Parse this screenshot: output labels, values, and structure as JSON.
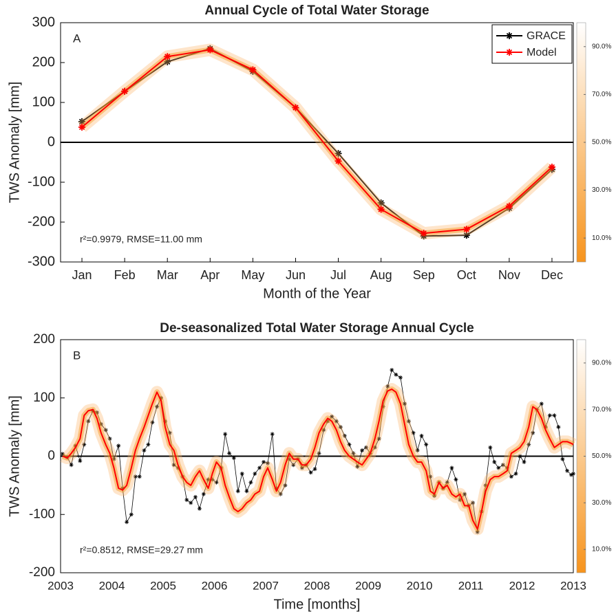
{
  "chart_data": [
    {
      "type": "line",
      "title": "Annual Cycle of Total Water Storage",
      "panel_label": "A",
      "annotation": "r²=0.9979, RMSE=11.00 mm",
      "x_label": "Month of the Year",
      "y_label": "TWS Anomaly [mm]",
      "categories": [
        "Jan",
        "Feb",
        "Mar",
        "Apr",
        "May",
        "Jun",
        "Jul",
        "Aug",
        "Sep",
        "Oct",
        "Nov",
        "Dec"
      ],
      "series": [
        {
          "name": "GRACE",
          "color": "#000000",
          "marker": "*",
          "values": [
            52,
            128,
            202,
            235,
            178,
            87,
            -28,
            -152,
            -235,
            -233,
            -165,
            -68
          ]
        },
        {
          "name": "Model",
          "color": "#ff0000",
          "marker": "*",
          "band": true,
          "values": [
            38,
            128,
            215,
            232,
            182,
            87,
            -47,
            -168,
            -228,
            -218,
            -160,
            -62
          ]
        }
      ],
      "ylim": [
        -300,
        300
      ],
      "yticks": [
        -300,
        -200,
        -100,
        0,
        100,
        200,
        300
      ],
      "legend": "upper right",
      "colorbar": {
        "colors": [
          "#f7941d",
          "#ffffff"
        ],
        "lim": [
          0,
          100
        ],
        "ticks": [
          {
            "value": 10,
            "label": "10.0%"
          },
          {
            "value": 30,
            "label": "30.0%"
          },
          {
            "value": 50,
            "label": "50.0%"
          },
          {
            "value": 70,
            "label": "70.0%"
          },
          {
            "value": 90,
            "label": "90.0%"
          }
        ]
      }
    },
    {
      "type": "line",
      "title": "De-seasonalized Total Water Storage Annual Cycle",
      "panel_label": "B",
      "annotation": "r²=0.8512, RMSE=29.27 mm",
      "x_label": "Time [months]",
      "y_label": "TWS Anomaly [mm]",
      "x": [
        2003.04,
        2003.13,
        2003.21,
        2003.29,
        2003.38,
        2003.46,
        2003.54,
        2003.63,
        2003.71,
        2003.79,
        2003.88,
        2003.96,
        2004.04,
        2004.13,
        2004.21,
        2004.29,
        2004.38,
        2004.46,
        2004.54,
        2004.63,
        2004.71,
        2004.79,
        2004.88,
        2004.96,
        2005.04,
        2005.13,
        2005.21,
        2005.29,
        2005.38,
        2005.46,
        2005.54,
        2005.63,
        2005.71,
        2005.79,
        2005.88,
        2005.96,
        2006.04,
        2006.13,
        2006.21,
        2006.29,
        2006.38,
        2006.46,
        2006.54,
        2006.63,
        2006.71,
        2006.79,
        2006.88,
        2006.96,
        2007.04,
        2007.13,
        2007.21,
        2007.29,
        2007.38,
        2007.46,
        2007.54,
        2007.63,
        2007.71,
        2007.79,
        2007.88,
        2007.96,
        2008.04,
        2008.13,
        2008.21,
        2008.29,
        2008.38,
        2008.46,
        2008.54,
        2008.63,
        2008.71,
        2008.79,
        2008.88,
        2008.96,
        2009.04,
        2009.13,
        2009.21,
        2009.29,
        2009.38,
        2009.46,
        2009.54,
        2009.63,
        2009.71,
        2009.79,
        2009.88,
        2009.96,
        2010.04,
        2010.13,
        2010.21,
        2010.29,
        2010.38,
        2010.46,
        2010.54,
        2010.63,
        2010.71,
        2010.79,
        2010.88,
        2010.96,
        2011.04,
        2011.13,
        2011.21,
        2011.29,
        2011.38,
        2011.46,
        2011.54,
        2011.63,
        2011.71,
        2011.79,
        2011.88,
        2011.96,
        2012.04,
        2012.13,
        2012.21,
        2012.29,
        2012.38,
        2012.46,
        2012.54,
        2012.63,
        2012.71,
        2012.79,
        2012.88,
        2012.96,
        2013.0
      ],
      "series": [
        {
          "color": "#000000",
          "marker": "*",
          "values": [
            4,
            -2,
            -15,
            18,
            -8,
            20,
            60,
            78,
            75,
            55,
            45,
            30,
            -5,
            18,
            -55,
            -113,
            -100,
            -35,
            -35,
            10,
            20,
            58,
            85,
            100,
            60,
            40,
            -15,
            -20,
            -35,
            -75,
            -80,
            -70,
            -90,
            -65,
            -40,
            -40,
            -45,
            -20,
            38,
            5,
            -3,
            -60,
            -30,
            -60,
            -45,
            -30,
            -20,
            -10,
            -12,
            38,
            -55,
            -65,
            -50,
            -5,
            -15,
            -5,
            -20,
            -15,
            -28,
            -22,
            5,
            45,
            60,
            68,
            60,
            50,
            35,
            20,
            5,
            -18,
            10,
            15,
            5,
            15,
            30,
            85,
            120,
            148,
            140,
            135,
            90,
            60,
            40,
            10,
            35,
            20,
            -35,
            -68,
            -45,
            -55,
            -45,
            -20,
            -40,
            -75,
            -65,
            -85,
            -80,
            -130,
            -95,
            -50,
            15,
            -10,
            -20,
            -15,
            -20,
            -35,
            -30,
            0,
            -10,
            20,
            40,
            80,
            90,
            50,
            70,
            70,
            50,
            -5,
            -25,
            -32,
            -30
          ]
        },
        {
          "color": "#ff0000",
          "marker": "none",
          "band": true,
          "values": [
            0,
            -3,
            5,
            15,
            30,
            70,
            78,
            80,
            65,
            40,
            20,
            5,
            -20,
            -55,
            -58,
            -50,
            -20,
            10,
            30,
            50,
            70,
            90,
            110,
            95,
            50,
            20,
            10,
            -15,
            -35,
            -45,
            -50,
            -35,
            -25,
            -40,
            -55,
            -30,
            -10,
            -20,
            -50,
            -70,
            -90,
            -95,
            -90,
            -80,
            -75,
            -65,
            -60,
            -35,
            -20,
            -40,
            -60,
            -45,
            -15,
            5,
            -5,
            -5,
            -15,
            -15,
            -5,
            15,
            40,
            55,
            65,
            60,
            45,
            25,
            10,
            0,
            -5,
            -10,
            -15,
            -5,
            5,
            30,
            60,
            95,
            112,
            115,
            110,
            90,
            55,
            20,
            0,
            -10,
            -10,
            -25,
            -60,
            -65,
            -45,
            -55,
            -50,
            -65,
            -70,
            -65,
            -85,
            -85,
            -110,
            -125,
            -95,
            -60,
            -40,
            -35,
            -35,
            -30,
            -25,
            5,
            10,
            15,
            25,
            50,
            85,
            80,
            65,
            45,
            30,
            15,
            20,
            25,
            25,
            22,
            20
          ]
        }
      ],
      "xlim": [
        2003,
        2013
      ],
      "xticks": [
        2003,
        2004,
        2005,
        2006,
        2007,
        2008,
        2009,
        2010,
        2011,
        2012,
        2013
      ],
      "ylim": [
        -200,
        200
      ],
      "yticks": [
        -200,
        -100,
        0,
        100,
        200
      ],
      "colorbar": {
        "colors": [
          "#f7941d",
          "#ffffff"
        ],
        "lim": [
          0,
          100
        ],
        "ticks": [
          {
            "value": 10,
            "label": "10.0%"
          },
          {
            "value": 30,
            "label": "30.0%"
          },
          {
            "value": 50,
            "label": "50.0%"
          },
          {
            "value": 70,
            "label": "70.0%"
          },
          {
            "value": 90,
            "label": "90.0%"
          }
        ]
      }
    }
  ]
}
